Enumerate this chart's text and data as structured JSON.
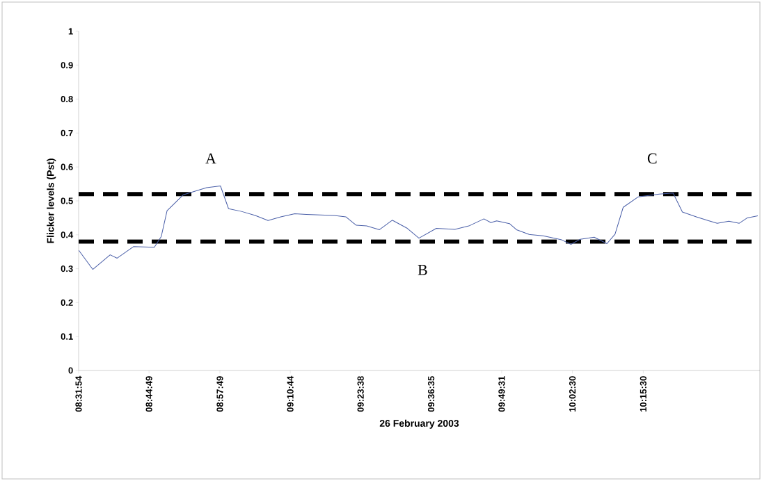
{
  "chart_data": {
    "type": "line",
    "xlabel": "26 February 2003",
    "ylabel": "Flicker levels (Pst)",
    "x": [
      8.5323,
      8.5749,
      8.6281,
      8.6494,
      8.6993,
      8.7631,
      8.7844,
      8.8021,
      8.8517,
      8.9228,
      8.9654,
      8.9901,
      9.0293,
      9.0719,
      9.1109,
      9.1498,
      9.1925,
      9.228,
      9.3132,
      9.3487,
      9.3807,
      9.4126,
      9.4516,
      9.4906,
      9.5368,
      9.5723,
      9.6256,
      9.6822,
      9.7248,
      9.771,
      9.7923,
      9.81,
      9.8492,
      9.8705,
      9.9094,
      9.952,
      10.0089,
      10.0372,
      10.0655,
      10.1082,
      10.1473,
      10.172,
      10.1969,
      10.2431,
      10.307,
      10.3496,
      10.3779,
      10.4205,
      10.4561,
      10.4844,
      10.52,
      10.5519,
      10.5766,
      10.6085
    ],
    "series": [
      {
        "color": "#4a5fa8",
        "values": [
          0.354,
          0.298,
          0.341,
          0.331,
          0.365,
          0.363,
          0.395,
          0.471,
          0.518,
          0.539,
          0.544,
          0.477,
          0.469,
          0.457,
          0.442,
          0.453,
          0.462,
          0.46,
          0.457,
          0.453,
          0.428,
          0.426,
          0.415,
          0.443,
          0.419,
          0.39,
          0.419,
          0.416,
          0.426,
          0.447,
          0.436,
          0.441,
          0.433,
          0.415,
          0.401,
          0.397,
          0.385,
          0.372,
          0.387,
          0.393,
          0.374,
          0.402,
          0.481,
          0.512,
          0.52,
          0.523,
          0.467,
          0.453,
          0.442,
          0.434,
          0.44,
          0.434,
          0.45,
          0.456
        ]
      }
    ],
    "xlim": [
      8.5317,
      10.615
    ],
    "xticks": [
      {
        "value": 8.5317,
        "label": "08:31:54"
      },
      {
        "value": 8.7469,
        "label": "08:44:49"
      },
      {
        "value": 8.9636,
        "label": "08:57:49"
      },
      {
        "value": 9.1789,
        "label": "09:10:44"
      },
      {
        "value": 9.3939,
        "label": "09:23:38"
      },
      {
        "value": 9.6097,
        "label": "09:36:35"
      },
      {
        "value": 9.8253,
        "label": "09:49:31"
      },
      {
        "value": 10.0417,
        "label": "10:02:30"
      },
      {
        "value": 10.2583,
        "label": "10:15:30"
      }
    ],
    "ylim": [
      0,
      1
    ],
    "yticks": [
      0,
      0.1,
      0.2,
      0.3,
      0.4,
      0.5,
      0.6,
      0.7,
      0.8,
      0.9,
      1
    ],
    "ref_lines": [
      {
        "axis": "y",
        "value": 0.52,
        "color": "#000000",
        "line_style": "dashed"
      },
      {
        "axis": "y",
        "value": 0.38,
        "color": "#000000",
        "line_style": "dashed",
        "label": "B"
      }
    ],
    "annotations": [
      "A",
      "C"
    ],
    "marker": "none"
  }
}
